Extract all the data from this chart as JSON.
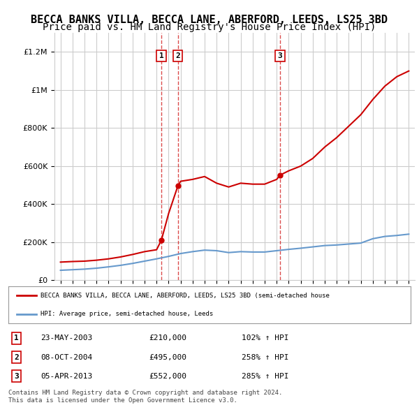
{
  "title": "BECCA BANKS VILLA, BECCA LANE, ABERFORD, LEEDS, LS25 3BD",
  "subtitle": "Price paid vs. HM Land Registry's House Price Index (HPI)",
  "legend_label_red": "BECCA BANKS VILLA, BECCA LANE, ABERFORD, LEEDS, LS25 3BD (semi-detached house",
  "legend_label_blue": "HPI: Average price, semi-detached house, Leeds",
  "footer1": "Contains HM Land Registry data © Crown copyright and database right 2024.",
  "footer2": "This data is licensed under the Open Government Licence v3.0.",
  "sales": [
    {
      "num": 1,
      "date": "23-MAY-2003",
      "price": 210000,
      "hpi_pct": "102%",
      "year": 2003.4
    },
    {
      "num": 2,
      "date": "08-OCT-2004",
      "price": 495000,
      "hpi_pct": "258%",
      "year": 2004.77
    },
    {
      "num": 3,
      "date": "05-APR-2013",
      "price": 552000,
      "hpi_pct": "285%",
      "year": 2013.27
    }
  ],
  "hpi_years": [
    1995,
    1996,
    1997,
    1998,
    1999,
    2000,
    2001,
    2002,
    2003,
    2004,
    2005,
    2006,
    2007,
    2008,
    2009,
    2010,
    2011,
    2012,
    2013,
    2014,
    2015,
    2016,
    2017,
    2018,
    2019,
    2020,
    2021,
    2022,
    2023,
    2024
  ],
  "hpi_values": [
    52000,
    55000,
    58000,
    63000,
    70000,
    78000,
    88000,
    100000,
    112000,
    125000,
    140000,
    150000,
    158000,
    155000,
    145000,
    150000,
    148000,
    148000,
    155000,
    162000,
    168000,
    175000,
    182000,
    185000,
    190000,
    195000,
    218000,
    230000,
    235000,
    242000
  ],
  "red_years": [
    1995,
    1996,
    1997,
    1998,
    1999,
    2000,
    2001,
    2002,
    2003,
    2003.4,
    2004,
    2004.77,
    2005,
    2006,
    2007,
    2008,
    2009,
    2010,
    2011,
    2012,
    2013,
    2013.27,
    2014,
    2015,
    2016,
    2017,
    2018,
    2019,
    2020,
    2021,
    2022,
    2023,
    2024
  ],
  "red_values": [
    95000,
    98000,
    100000,
    105000,
    112000,
    122000,
    135000,
    150000,
    160000,
    210000,
    350000,
    495000,
    520000,
    530000,
    545000,
    510000,
    490000,
    510000,
    505000,
    505000,
    530000,
    552000,
    575000,
    600000,
    640000,
    700000,
    750000,
    810000,
    870000,
    950000,
    1020000,
    1070000,
    1100000
  ],
  "ylim": [
    0,
    1300000
  ],
  "xlim": [
    1994.5,
    2024.5
  ],
  "red_color": "#cc0000",
  "blue_color": "#6699cc",
  "dashed_color": "#cc0000",
  "background_color": "#ffffff",
  "grid_color": "#cccccc",
  "title_fontsize": 11,
  "subtitle_fontsize": 10
}
